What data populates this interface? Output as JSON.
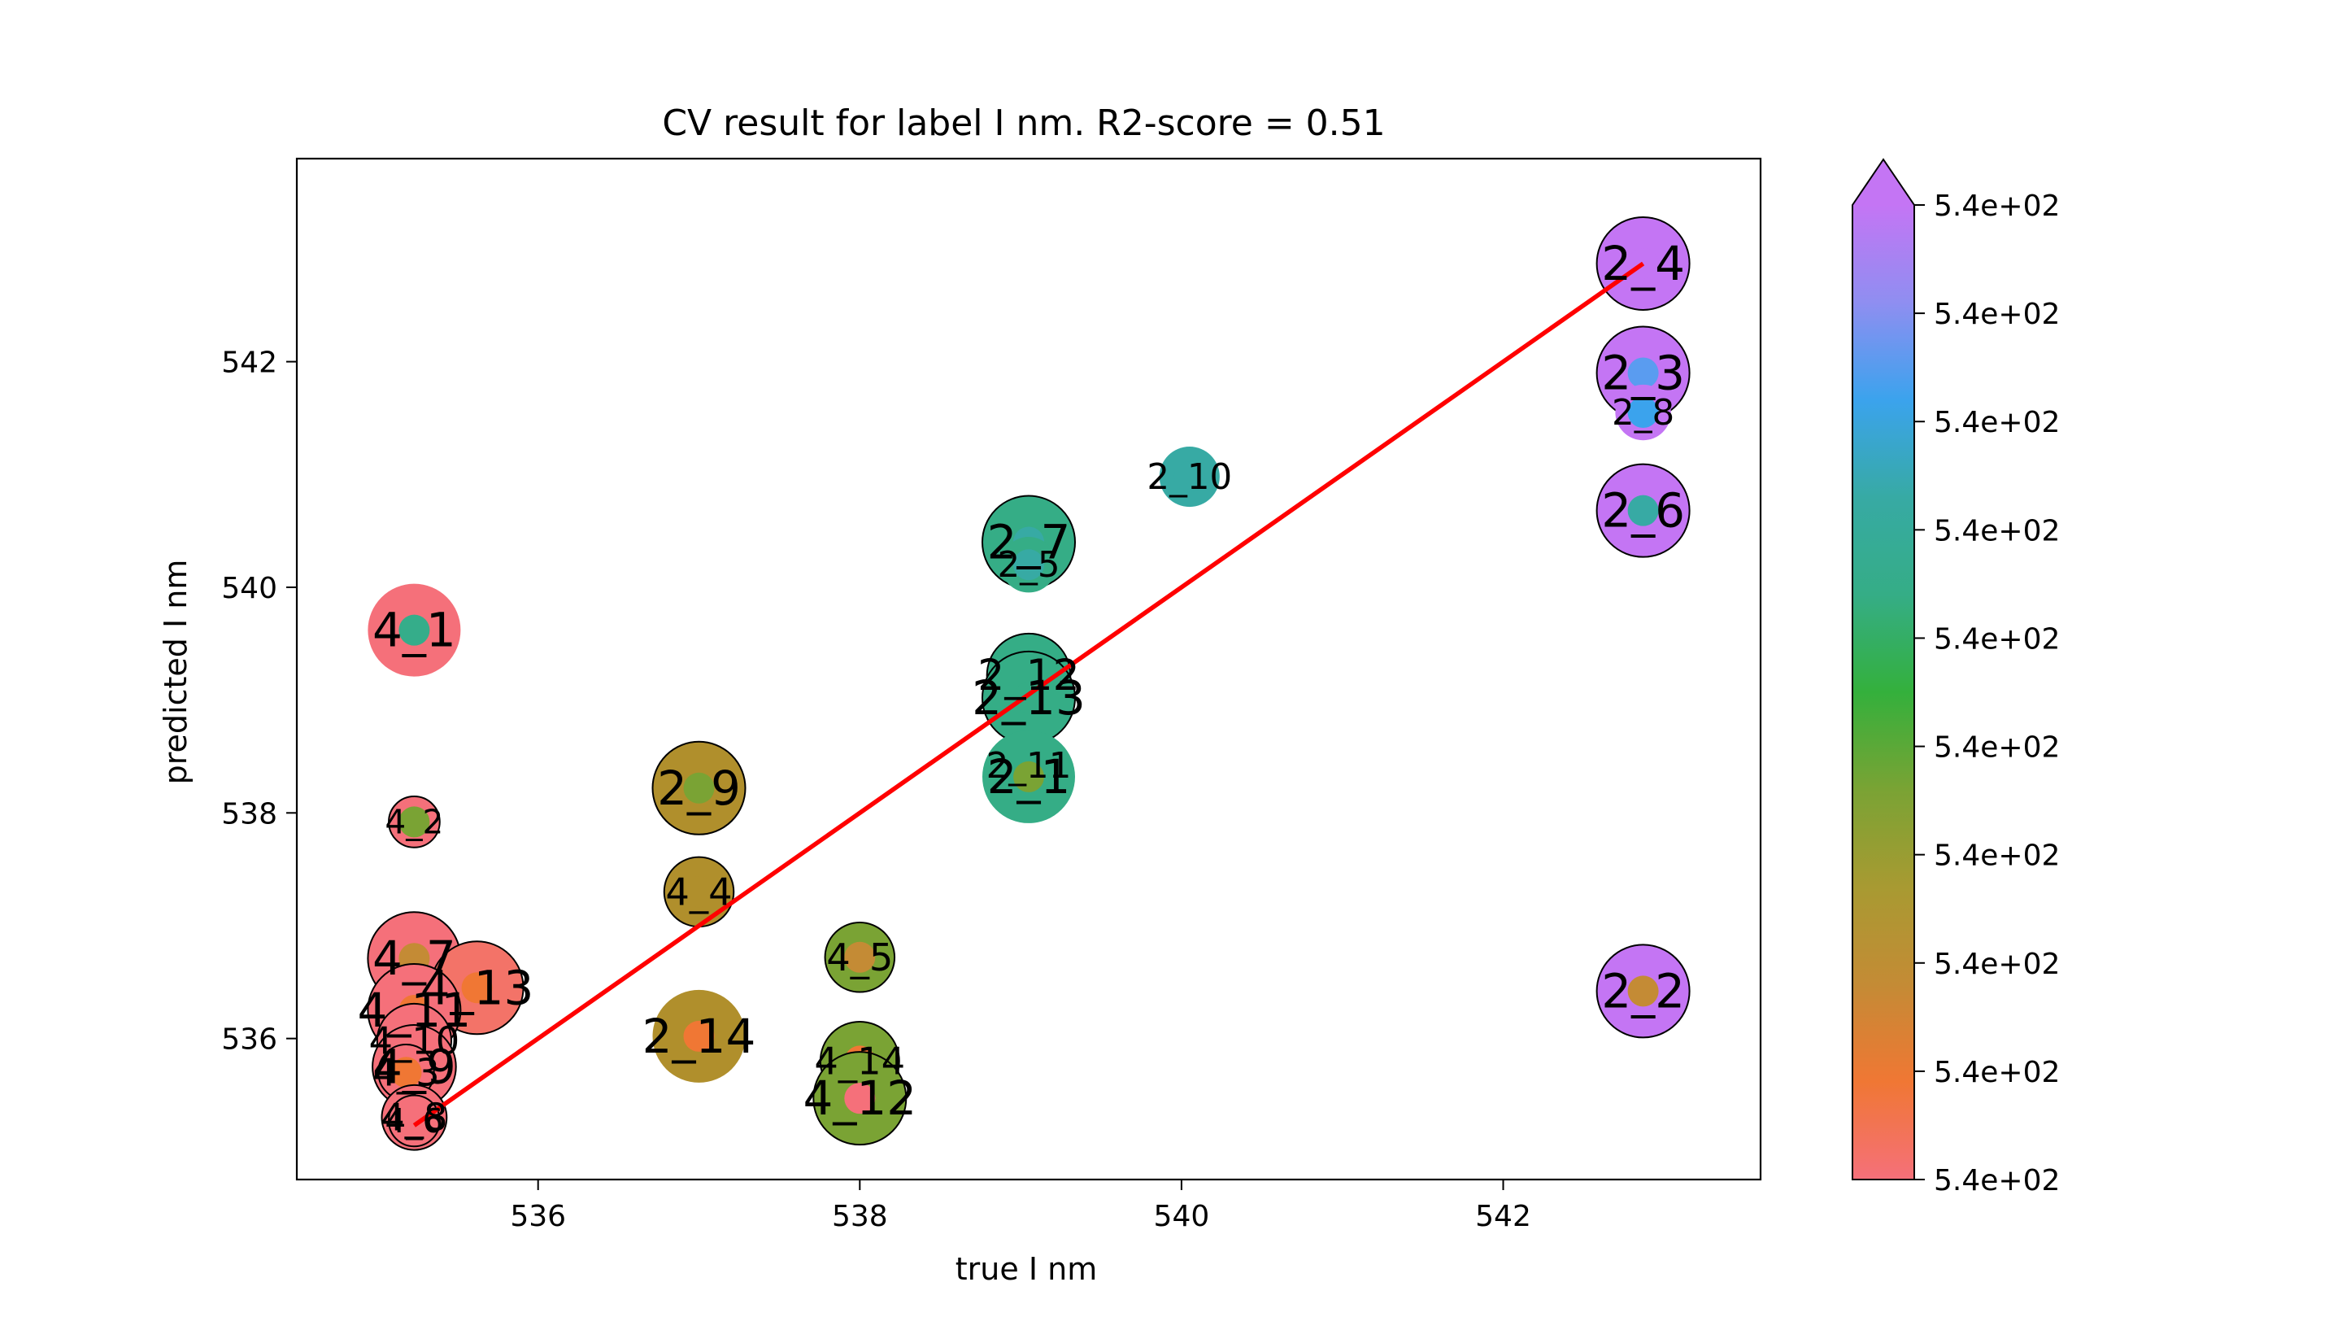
{
  "chart_data": {
    "type": "scatter",
    "title": "CV result for label I nm. R2-score = 0.51",
    "xlabel": "true I nm",
    "ylabel": "predicted I nm",
    "xlim": [
      534.5,
      543.6
    ],
    "ylim": [
      534.75,
      543.8
    ],
    "x_ticks": [
      536,
      538,
      540,
      542
    ],
    "y_ticks": [
      536,
      538,
      540,
      542
    ],
    "fit_line": {
      "from": [
        535.23,
        535.23
      ],
      "to": [
        542.87,
        542.87
      ],
      "color": "#ff0000"
    },
    "colorbar": {
      "extend": "max",
      "ticks": [
        "5.4e+02",
        "5.4e+02",
        "5.4e+02",
        "5.4e+02",
        "5.4e+02",
        "5.4e+02",
        "5.4e+02",
        "5.4e+02",
        "5.4e+02",
        "5.4e+02"
      ],
      "colors": [
        "#f5707a",
        "#f07734",
        "#c48b35",
        "#a89a32",
        "#7aa334",
        "#34b03c",
        "#35ad86",
        "#37aaa4",
        "#3ba3ed",
        "#8f8ef1",
        "#c475f4"
      ],
      "extend_color": "#c475f4"
    },
    "points": [
      {
        "label": "4_1",
        "x": 535.23,
        "y": 539.62,
        "big": 1.0,
        "outer": "#f5707a",
        "inner": "#35ad8a",
        "edge": false,
        "fs": 1.0
      },
      {
        "label": "4_2",
        "x": 535.23,
        "y": 537.92,
        "big": 0.55,
        "outer": "#f5707a",
        "inner": "#7aa334",
        "edge": true,
        "fs": 0.7
      },
      {
        "label": "4_7",
        "x": 535.23,
        "y": 536.71,
        "big": 1.0,
        "outer": "#f5707a",
        "inner": "#c48b35",
        "edge": true,
        "fs": 1.0
      },
      {
        "label": "4_13",
        "x": 535.62,
        "y": 536.45,
        "big": 1.0,
        "outer": "#f37368",
        "inner": "#f07734",
        "edge": true,
        "fs": 1.0
      },
      {
        "label": "4_11",
        "x": 535.23,
        "y": 536.25,
        "big": 1.0,
        "outer": "#f5707a",
        "inner": "#f07734",
        "edge": true,
        "fs": 1.0
      },
      {
        "label": "4_10",
        "x": 535.23,
        "y": 535.98,
        "big": 0.8,
        "outer": "#f5707a",
        "inner": "#f07734",
        "edge": true,
        "fs": 0.8
      },
      {
        "label": "4_9",
        "x": 535.23,
        "y": 535.75,
        "big": 0.9,
        "outer": "#f5707a",
        "inner": "#f07734",
        "edge": true,
        "fs": 1.0
      },
      {
        "label": "4_3",
        "x": 535.18,
        "y": 535.7,
        "big": 0.6,
        "outer": "#f5707a",
        "inner": "#f07734",
        "edge": true,
        "fs": 0.8
      },
      {
        "label": "4_8",
        "x": 535.23,
        "y": 535.3,
        "big": 0.7,
        "outer": "#f5707a",
        "inner": "#f5707a",
        "edge": true,
        "fs": 0.8
      },
      {
        "label": "4_6",
        "x": 535.23,
        "y": 535.27,
        "big": 0.55,
        "outer": "#f5707a",
        "inner": "#f5707a",
        "edge": true,
        "fs": 0.7
      },
      {
        "label": "2_9",
        "x": 537.0,
        "y": 538.22,
        "big": 1.0,
        "outer": "#b08f2c",
        "inner": "#7aa334",
        "edge": true,
        "fs": 1.0
      },
      {
        "label": "4_4",
        "x": 537.0,
        "y": 537.3,
        "big": 0.75,
        "outer": "#b08f2c",
        "inner": "#b08f2c",
        "edge": true,
        "fs": 0.8
      },
      {
        "label": "2_14",
        "x": 537.0,
        "y": 536.02,
        "big": 1.0,
        "outer": "#b08f2c",
        "inner": "#f07734",
        "edge": false,
        "fs": 1.0
      },
      {
        "label": "4_5",
        "x": 538.0,
        "y": 536.72,
        "big": 0.75,
        "outer": "#7aa334",
        "inner": "#c48b35",
        "edge": true,
        "fs": 0.8
      },
      {
        "label": "4_14",
        "x": 538.0,
        "y": 535.8,
        "big": 0.85,
        "outer": "#7aa334",
        "inner": "#f07734",
        "edge": true,
        "fs": 0.8
      },
      {
        "label": "4_12",
        "x": 538.0,
        "y": 535.47,
        "big": 1.0,
        "outer": "#7aa334",
        "inner": "#f5707a",
        "edge": true,
        "fs": 1.0
      },
      {
        "label": "2_7",
        "x": 539.05,
        "y": 540.4,
        "big": 1.0,
        "outer": "#35ad86",
        "inner": "#37aaa4",
        "edge": true,
        "fs": 1.0
      },
      {
        "label": "2_5",
        "x": 539.05,
        "y": 540.2,
        "big": 0.6,
        "outer": "#35ad86",
        "inner": "#37aaa4",
        "edge": false,
        "fs": 0.75
      },
      {
        "label": "2_12",
        "x": 539.05,
        "y": 539.22,
        "big": 0.9,
        "outer": "#35ad86",
        "inner": "#35ad86",
        "edge": true,
        "fs": 0.9
      },
      {
        "label": "2_13",
        "x": 539.05,
        "y": 539.02,
        "big": 1.0,
        "outer": "#35ad86",
        "inner": "#35ad86",
        "edge": true,
        "fs": 1.0
      },
      {
        "label": "2_11",
        "x": 539.05,
        "y": 538.42,
        "big": 0.6,
        "outer": "#35ad86",
        "inner": "#7aa334",
        "edge": false,
        "fs": 0.75
      },
      {
        "label": "2_1",
        "x": 539.05,
        "y": 538.32,
        "big": 1.0,
        "outer": "#35ad86",
        "inner": "#7aa334",
        "edge": false,
        "fs": 1.0
      },
      {
        "label": "2_10",
        "x": 540.05,
        "y": 540.98,
        "big": 0.65,
        "outer": "#37aaa4",
        "inner": "#37aaa4",
        "edge": false,
        "fs": 0.75
      },
      {
        "label": "2_4",
        "x": 542.87,
        "y": 542.87,
        "big": 1.0,
        "outer": "#c475f4",
        "inner": "#c475f4",
        "edge": true,
        "fs": 1.0
      },
      {
        "label": "2_3",
        "x": 542.87,
        "y": 541.9,
        "big": 1.0,
        "outer": "#c475f4",
        "inner": "#5a9cf0",
        "edge": true,
        "fs": 1.0
      },
      {
        "label": "2_8",
        "x": 542.87,
        "y": 541.55,
        "big": 0.6,
        "outer": "#c475f4",
        "inner": "#3ba3ed",
        "edge": false,
        "fs": 0.75
      },
      {
        "label": "2_6",
        "x": 542.87,
        "y": 540.68,
        "big": 1.0,
        "outer": "#c475f4",
        "inner": "#37aaa4",
        "edge": true,
        "fs": 1.0
      },
      {
        "label": "2_2",
        "x": 542.87,
        "y": 536.42,
        "big": 1.0,
        "outer": "#c475f4",
        "inner": "#c48b35",
        "edge": true,
        "fs": 1.0
      }
    ]
  }
}
